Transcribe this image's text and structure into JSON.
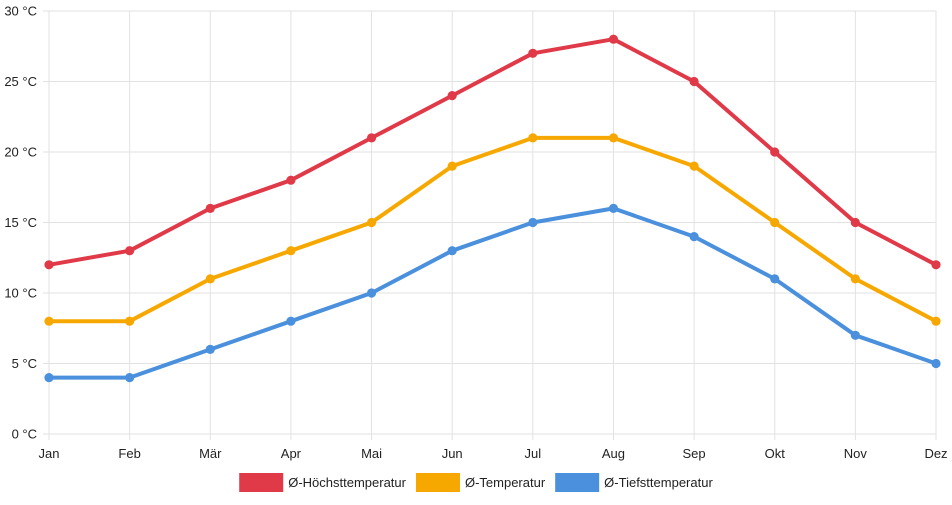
{
  "chart_data": {
    "type": "line",
    "categories": [
      "Jan",
      "Feb",
      "Mär",
      "Apr",
      "Mai",
      "Jun",
      "Jul",
      "Aug",
      "Sep",
      "Okt",
      "Nov",
      "Dez"
    ],
    "series": [
      {
        "name": "Ø-Höchsttemperatur",
        "color": "#e03a49",
        "values": [
          12,
          13,
          16,
          18,
          21,
          24,
          27,
          28,
          25,
          20,
          15,
          12
        ]
      },
      {
        "name": "Ø-Temperatur",
        "color": "#f7a800",
        "values": [
          8,
          8,
          11,
          13,
          15,
          19,
          21,
          21,
          19,
          15,
          11,
          8
        ]
      },
      {
        "name": "Ø-Tiefsttemperatur",
        "color": "#4a90dd",
        "values": [
          4,
          4,
          6,
          8,
          10,
          13,
          15,
          16,
          14,
          11,
          7,
          5
        ]
      }
    ],
    "y_ticks": [
      "0 °C",
      "5 °C",
      "10 °C",
      "15 °C",
      "20 °C",
      "25 °C",
      "30 °C"
    ],
    "ylim": [
      0,
      30
    ],
    "ystep": 5,
    "grid": true,
    "legend": "bottom",
    "title": "",
    "xlabel": "",
    "ylabel": ""
  }
}
